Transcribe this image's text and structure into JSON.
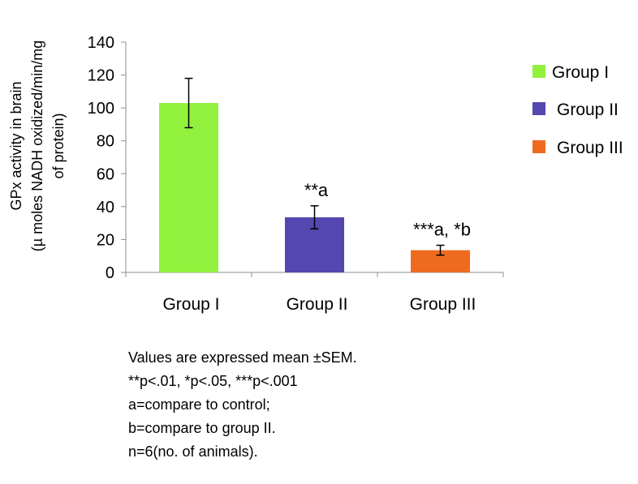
{
  "chart_data": {
    "type": "bar",
    "title": "",
    "ylabel": "GPx activity in brain (µ moles NADH oxidized/min/mg of protein)",
    "ylabel_lines": [
      "GPx activity in brain",
      "(µ moles NADH oxidized/min/mg",
      "of protein)"
    ],
    "xlabel": "",
    "categories": [
      "Group I",
      "Group II",
      "Group III"
    ],
    "values": [
      103,
      33.5,
      13.5
    ],
    "errors": [
      15,
      7,
      3
    ],
    "colors": [
      "#92f13d",
      "#5447b0",
      "#ee6a1f"
    ],
    "annotations": [
      "",
      "**a",
      "***a, *b"
    ],
    "ylim": [
      0,
      140
    ],
    "yticks": [
      0,
      20,
      40,
      60,
      80,
      100,
      120,
      140
    ],
    "grid": false,
    "legend": {
      "position": "right",
      "entries": [
        "Group I",
        "Group II",
        "Group III"
      ]
    }
  },
  "notes": [
    "Values are expressed mean ±SEM.",
    "**p<.01, *p<.05, ***p<.001",
    "a=compare to control;",
    "b=compare to group II.",
    "n=6(no. of animals)."
  ]
}
